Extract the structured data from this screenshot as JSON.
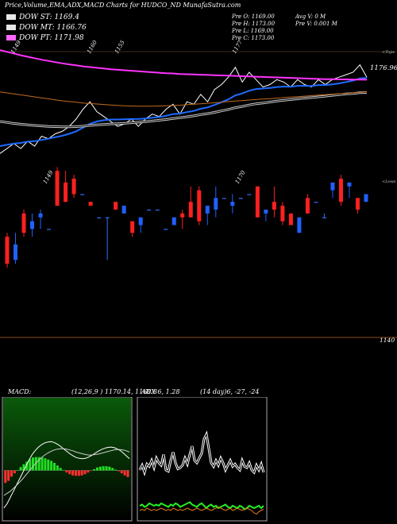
{
  "header": {
    "title": "Price,Volume,EMA,ADX,MACD Charts for HUDCO_ND MunafaSutra.com"
  },
  "legend": [
    {
      "label": "DOW ST: 1169.4",
      "color": "#e8e8e8"
    },
    {
      "label": "DOW MT: 1166.76",
      "color": "#e8e8e8"
    },
    {
      "label": "DOW PT: 1171.98",
      "color": "#ff66ff"
    }
  ],
  "ohlc": {
    "open": "Pre   O: 1169.00",
    "high": "Pre   H: 1173.00",
    "low": "Pre   L: 1169.00",
    "close": "Pre   C: 1173.00",
    "avg_vol": "Avg V: 0  M",
    "vol": "Pre   V: 0.001 M"
  },
  "macd_panel": {
    "title": "MACD:",
    "params": "(12,26,9 ) 1170.14,  1168.8"
  },
  "adx_panel": {
    "title": "ADX   6,  1.28",
    "params": "(14  day)6,  -27,  -24"
  },
  "chart_data": [
    {
      "type": "line",
      "name": "price-panel",
      "ylim": [
        1135,
        1185
      ],
      "price_label": "1176.96",
      "price_label_value": 1176.96,
      "top_label": "<Tops",
      "top_annotations": [
        {
          "text": "1149",
          "index": 2,
          "value": 1149
        },
        {
          "text": "1160",
          "index": 13,
          "value": 1160
        },
        {
          "text": "1155",
          "index": 17,
          "value": 1155
        },
        {
          "text": "1177",
          "index": 34,
          "value": 1177
        }
      ],
      "series": [
        {
          "name": "close",
          "color": "#ffffff",
          "values": [
            1142,
            1144,
            1146,
            1144,
            1147,
            1145,
            1149,
            1148,
            1150,
            1151,
            1153,
            1156,
            1160,
            1163,
            1159,
            1157,
            1155,
            1153,
            1154,
            1156,
            1153,
            1156,
            1158,
            1157,
            1160,
            1162,
            1158,
            1163,
            1162,
            1166,
            1163,
            1168,
            1170,
            1173,
            1177,
            1171,
            1175,
            1172,
            1169,
            1170,
            1172,
            1171,
            1169,
            1172,
            1170,
            1169,
            1172,
            1170,
            1172,
            1173,
            1174,
            1175,
            1178,
            1173
          ]
        },
        {
          "name": "ema-short",
          "color": "#1f6bff",
          "values": [
            1145,
            1145.5,
            1146,
            1146.3,
            1146.8,
            1147,
            1147.5,
            1148,
            1148.6,
            1149.2,
            1150,
            1151,
            1152.5,
            1154,
            1155,
            1155.5,
            1155.8,
            1155.8,
            1155.9,
            1156,
            1156,
            1156.2,
            1156.5,
            1156.8,
            1157.3,
            1158,
            1158.2,
            1158.8,
            1159.3,
            1160.2,
            1160.7,
            1161.7,
            1162.8,
            1164,
            1165.6,
            1166.4,
            1167.5,
            1168.2,
            1168.4,
            1168.6,
            1169,
            1169.2,
            1169.1,
            1169.5,
            1169.5,
            1169.4,
            1169.8,
            1169.8,
            1170.1,
            1170.5,
            1171,
            1171.6,
            1172.5,
            1172.7
          ]
        },
        {
          "name": "dow-mt",
          "color": "#cccccc",
          "values": [
            1155,
            1154.6,
            1154.2,
            1153.9,
            1153.6,
            1153.4,
            1153.2,
            1153,
            1152.9,
            1152.8,
            1152.8,
            1152.9,
            1153.1,
            1153.4,
            1153.6,
            1153.8,
            1154,
            1154.1,
            1154.3,
            1154.5,
            1154.7,
            1154.9,
            1155.2,
            1155.5,
            1155.8,
            1156.2,
            1156.5,
            1156.9,
            1157.3,
            1157.8,
            1158.2,
            1158.7,
            1159.3,
            1159.9,
            1160.6,
            1161.1,
            1161.7,
            1162.2,
            1162.5,
            1162.9,
            1163.3,
            1163.6,
            1163.9,
            1164.2,
            1164.5,
            1164.7,
            1165,
            1165.3,
            1165.6,
            1165.9,
            1166.2,
            1166.4,
            1166.7,
            1166.76
          ]
        },
        {
          "name": "dow-lt",
          "color": "#c26a1e",
          "values": [
            1167,
            1166.6,
            1166.2,
            1165.8,
            1165.4,
            1165,
            1164.6,
            1164.2,
            1163.8,
            1163.4,
            1163.1,
            1162.8,
            1162.5,
            1162.3,
            1162.1,
            1161.9,
            1161.7,
            1161.5,
            1161.4,
            1161.3,
            1161.2,
            1161.2,
            1161.2,
            1161.3,
            1161.4,
            1161.5,
            1161.6,
            1161.8,
            1162,
            1162.2,
            1162.4,
            1162.6,
            1162.8,
            1163.1,
            1163.3,
            1163.5,
            1163.7,
            1163.9,
            1164.1,
            1164.3,
            1164.5,
            1164.7,
            1164.9,
            1165.1,
            1165.3,
            1165.5,
            1165.7,
            1165.9,
            1166.1,
            1166.3,
            1166.4,
            1166.6,
            1166.8,
            1167
          ]
        },
        {
          "name": "dow-pt",
          "color": "#ff33ff",
          "values": [
            1184,
            1183.3,
            1182.6,
            1181.9,
            1181.3,
            1180.7,
            1180.1,
            1179.6,
            1179.1,
            1178.6,
            1178.2,
            1177.8,
            1177.4,
            1177.1,
            1176.8,
            1176.5,
            1176.2,
            1176,
            1175.8,
            1175.6,
            1175.4,
            1175.2,
            1175,
            1174.8,
            1174.6,
            1174.5,
            1174.3,
            1174.2,
            1174.1,
            1174,
            1173.9,
            1173.8,
            1173.7,
            1173.6,
            1173.5,
            1173.4,
            1173.3,
            1173.2,
            1173.1,
            1173,
            1172.9,
            1172.8,
            1172.7,
            1172.6,
            1172.5,
            1172.4,
            1172.3,
            1172.2,
            1172.2,
            1172.1,
            1172.1,
            1172,
            1172,
            1171.98
          ]
        }
      ]
    },
    {
      "type": "candlestick",
      "name": "candle-panel",
      "ylim": [
        1140,
        1180
      ],
      "bottom_label": "1140",
      "bottom_label_value": 1140,
      "low_label": "<Lows",
      "low_annotations": [
        {
          "text": "1149",
          "index": 12,
          "value": 1149
        },
        {
          "text": "1170",
          "index": 85,
          "value": 1170
        }
      ],
      "candles": [
        {
          "o": 1165,
          "h": 1166,
          "l": 1157,
          "c": 1158
        },
        {
          "o": 1159,
          "h": 1166,
          "l": 1158,
          "c": 1163
        },
        {
          "o": 1171,
          "h": 1172,
          "l": 1165,
          "c": 1166
        },
        {
          "o": 1167,
          "h": 1171,
          "l": 1165,
          "c": 1169
        },
        {
          "o": 1170,
          "h": 1172,
          "l": 1167,
          "c": 1171
        },
        {
          "o": 1167,
          "h": 1167,
          "l": 1167,
          "c": 1167
        },
        {
          "o": 1182,
          "h": 1183,
          "l": 1173,
          "c": 1173
        },
        {
          "o": 1179,
          "h": 1182,
          "l": 1174,
          "c": 1174
        },
        {
          "o": 1180,
          "h": 1181,
          "l": 1175,
          "c": 1176
        },
        {
          "o": 1176,
          "h": 1176,
          "l": 1176,
          "c": 1176
        },
        {
          "o": 1174,
          "h": 1174,
          "l": 1173,
          "c": 1173
        },
        {
          "o": 1170,
          "h": 1170,
          "l": 1170,
          "c": 1170
        },
        {
          "o": 1170,
          "h": 1170,
          "l": 1159,
          "c": 1170
        },
        {
          "o": 1174,
          "h": 1174,
          "l": 1172,
          "c": 1172
        },
        {
          "o": 1171,
          "h": 1173,
          "l": 1171,
          "c": 1173
        },
        {
          "o": 1169,
          "h": 1169,
          "l": 1165,
          "c": 1166
        },
        {
          "o": 1168,
          "h": 1170,
          "l": 1166,
          "c": 1170
        },
        {
          "o": 1172,
          "h": 1172,
          "l": 1172,
          "c": 1172
        },
        {
          "o": 1172,
          "h": 1172,
          "l": 1172,
          "c": 1172
        },
        {
          "o": 1167,
          "h": 1167,
          "l": 1167,
          "c": 1167
        },
        {
          "o": 1168,
          "h": 1170,
          "l": 1168,
          "c": 1170
        },
        {
          "o": 1171,
          "h": 1172,
          "l": 1167,
          "c": 1170
        },
        {
          "o": 1174,
          "h": 1178,
          "l": 1170,
          "c": 1170
        },
        {
          "o": 1177,
          "h": 1178,
          "l": 1168,
          "c": 1169
        },
        {
          "o": 1171,
          "h": 1173,
          "l": 1168,
          "c": 1173
        },
        {
          "o": 1172,
          "h": 1178,
          "l": 1170,
          "c": 1175
        },
        {
          "o": 1175,
          "h": 1175,
          "l": 1175,
          "c": 1175
        },
        {
          "o": 1173,
          "h": 1176,
          "l": 1171,
          "c": 1174
        },
        {
          "o": 1175,
          "h": 1175,
          "l": 1175,
          "c": 1175
        },
        {
          "o": 1176,
          "h": 1176,
          "l": 1176,
          "c": 1176
        },
        {
          "o": 1178,
          "h": 1178,
          "l": 1170,
          "c": 1170
        },
        {
          "o": 1171,
          "h": 1172,
          "l": 1169,
          "c": 1172
        },
        {
          "o": 1174,
          "h": 1178,
          "l": 1170,
          "c": 1172
        },
        {
          "o": 1173,
          "h": 1174,
          "l": 1168,
          "c": 1169
        },
        {
          "o": 1171,
          "h": 1171,
          "l": 1168,
          "c": 1168
        },
        {
          "o": 1166,
          "h": 1170,
          "l": 1166,
          "c": 1170
        },
        {
          "o": 1175,
          "h": 1176,
          "l": 1171,
          "c": 1171
        },
        {
          "o": 1174,
          "h": 1174,
          "l": 1174,
          "c": 1174
        },
        {
          "o": 1170,
          "h": 1171,
          "l": 1170,
          "c": 1170
        },
        {
          "o": 1177,
          "h": 1179,
          "l": 1175,
          "c": 1179
        },
        {
          "o": 1180,
          "h": 1181,
          "l": 1173,
          "c": 1174
        },
        {
          "o": 1178,
          "h": 1179,
          "l": 1175,
          "c": 1179
        },
        {
          "o": 1175,
          "h": 1175,
          "l": 1171,
          "c": 1172
        },
        {
          "o": 1174,
          "h": 1176,
          "l": 1174,
          "c": 1176
        }
      ]
    },
    {
      "type": "bar+line",
      "name": "macd-panel",
      "ylim": [
        -10,
        10
      ],
      "series": [
        {
          "name": "macd",
          "color": "#ffffff",
          "values": [
            -9,
            -8,
            -6.5,
            -5,
            -3.5,
            -2,
            -0.5,
            1,
            2.5,
            3.8,
            4.8,
            5.6,
            6.2,
            6.6,
            6.8,
            6.9,
            6.7,
            6.3,
            5.8,
            5.2,
            4.6,
            4,
            3.5,
            3.1,
            2.9,
            2.8,
            2.9,
            3.2,
            3.6,
            4.1,
            4.6,
            5,
            5.3,
            5.5,
            5.6,
            5.5,
            5.2,
            4.8,
            4.2,
            3.5,
            2.8
          ]
        },
        {
          "name": "signal",
          "color": "#cccccc",
          "values": [
            -6,
            -5.5,
            -5,
            -4.3,
            -3.6,
            -2.8,
            -2,
            -1.1,
            -0.2,
            0.7,
            1.6,
            2.4,
            3.1,
            3.7,
            4.2,
            4.6,
            4.9,
            5.1,
            5.2,
            5.2,
            5.1,
            4.9,
            4.7,
            4.4,
            4.2,
            4,
            3.8,
            3.7,
            3.7,
            3.8,
            3.9,
            4.1,
            4.3,
            4.5,
            4.7,
            4.9,
            5,
            5,
            4.9,
            4.7,
            4.4
          ]
        },
        {
          "name": "histogram",
          "color": "#22dd22",
          "values": [
            -3,
            -2.5,
            -1.5,
            -0.7,
            0.1,
            0.8,
            1.5,
            2.1,
            2.7,
            3.1,
            3.2,
            3.2,
            3.1,
            2.9,
            2.6,
            2.3,
            1.8,
            1.2,
            0.6,
            0,
            -0.5,
            -0.9,
            -1.2,
            -1.3,
            -1.3,
            -1.2,
            -0.9,
            -0.5,
            -0.1,
            0.3,
            0.7,
            0.9,
            1,
            1,
            0.9,
            0.6,
            0.2,
            -0.2,
            -0.7,
            -1.2,
            -1.6
          ]
        }
      ]
    },
    {
      "type": "line",
      "name": "adx-panel",
      "ylim": [
        0,
        100
      ],
      "series": [
        {
          "name": "adx",
          "color": "#ffffff",
          "values": [
            42,
            46,
            40,
            47,
            45,
            50,
            44,
            52,
            48,
            46,
            55,
            42,
            41,
            50,
            57,
            48,
            43,
            44,
            46,
            52,
            47,
            55,
            62,
            50,
            48,
            52,
            56,
            68,
            72,
            60,
            48,
            45,
            50,
            46,
            52,
            48,
            42,
            46,
            50,
            45,
            47,
            44,
            42,
            50,
            45,
            44,
            48,
            42,
            40,
            46,
            42,
            47,
            40
          ]
        },
        {
          "name": "plus-di",
          "color": "#22ee22",
          "values": [
            12,
            13,
            11,
            12,
            14,
            13,
            12,
            13,
            12,
            14,
            13,
            12,
            11,
            13,
            12,
            14,
            13,
            11,
            12,
            13,
            14,
            15,
            13,
            12,
            11,
            13,
            14,
            12,
            10,
            12,
            13,
            11,
            12,
            10,
            11,
            12,
            13,
            11,
            10,
            12,
            11,
            10,
            12,
            11,
            9,
            10,
            12,
            11,
            10,
            11,
            12,
            10,
            12
          ]
        },
        {
          "name": "minus-di",
          "color": "#e07a20",
          "values": [
            8,
            9,
            8,
            10,
            9,
            8,
            9,
            8,
            9,
            10,
            9,
            8,
            9,
            8,
            10,
            9,
            8,
            9,
            8,
            9,
            10,
            9,
            8,
            9,
            10,
            9,
            8,
            9,
            10,
            9,
            8,
            9,
            10,
            11,
            10,
            9,
            8,
            9,
            10,
            8,
            9,
            10,
            9,
            8,
            9,
            10,
            9,
            8,
            6,
            5,
            7,
            8,
            9
          ]
        }
      ]
    }
  ]
}
